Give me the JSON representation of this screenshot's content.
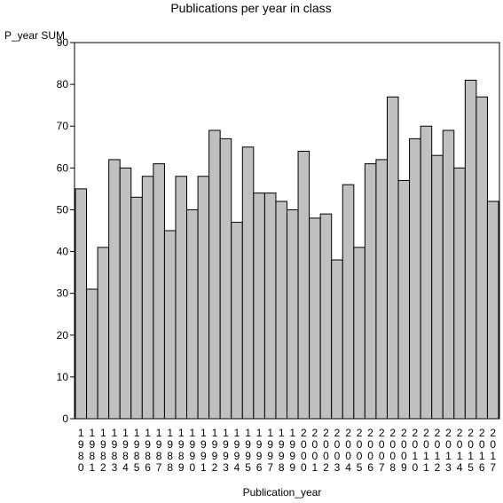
{
  "chart_data": {
    "type": "bar",
    "title": "Publications per year in class",
    "ylabel": "P_year SUM",
    "xlabel": "Publication_year",
    "ylim": [
      0,
      90
    ],
    "yticks": [
      0,
      10,
      20,
      30,
      40,
      50,
      60,
      70,
      80,
      90
    ],
    "grid": false,
    "bar_color": "#c0c0c0",
    "categories": [
      "1980",
      "1981",
      "1982",
      "1983",
      "1984",
      "1985",
      "1986",
      "1987",
      "1988",
      "1989",
      "1990",
      "1991",
      "1992",
      "1993",
      "1994",
      "1995",
      "1996",
      "1997",
      "1998",
      "1999",
      "2000",
      "2001",
      "2002",
      "2003",
      "2004",
      "2005",
      "2006",
      "2007",
      "2008",
      "2009",
      "2010",
      "2011",
      "2012",
      "2013",
      "2014",
      "2015",
      "2016",
      "2017"
    ],
    "values": [
      55,
      31,
      41,
      62,
      60,
      53,
      58,
      61,
      45,
      58,
      50,
      58,
      69,
      67,
      47,
      65,
      54,
      54,
      52,
      50,
      64,
      48,
      49,
      38,
      56,
      41,
      61,
      62,
      77,
      57,
      67,
      70,
      63,
      69,
      60,
      81,
      77,
      52
    ]
  }
}
